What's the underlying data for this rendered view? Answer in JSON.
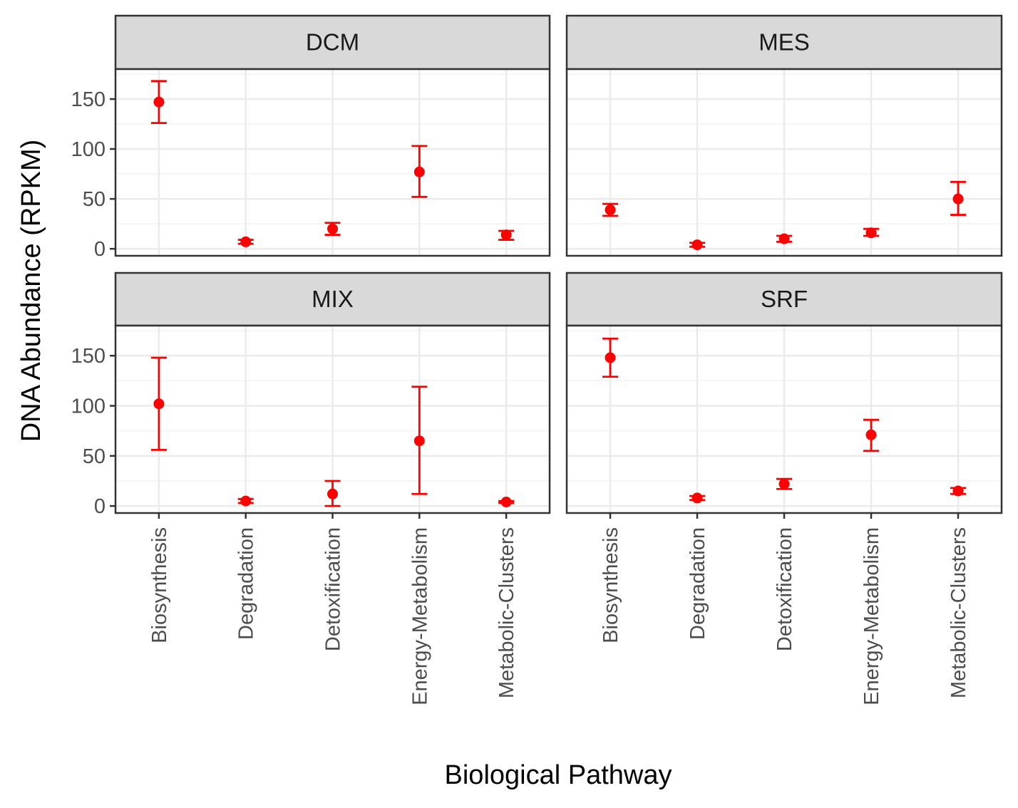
{
  "chart_data": {
    "type": "scatter",
    "title": "",
    "xlabel": "Biological Pathway",
    "ylabel": "DNA Abundance (RPKM)",
    "categories": [
      "Biosynthesis",
      "Degradation",
      "Detoxification",
      "Energy-Metabolism",
      "Metabolic-Clusters"
    ],
    "yticks": [
      0,
      50,
      100,
      150
    ],
    "ylim": [
      -7,
      180
    ],
    "grid": true,
    "point_color": "#ff0000",
    "facets": [
      {
        "name": "DCM",
        "points": [
          {
            "category": "Biosynthesis",
            "y": 147,
            "ymin": 126,
            "ymax": 168
          },
          {
            "category": "Degradation",
            "y": 7,
            "ymin": 5,
            "ymax": 9
          },
          {
            "category": "Detoxification",
            "y": 20,
            "ymin": 14,
            "ymax": 26
          },
          {
            "category": "Energy-Metabolism",
            "y": 77,
            "ymin": 52,
            "ymax": 103
          },
          {
            "category": "Metabolic-Clusters",
            "y": 14,
            "ymin": 9,
            "ymax": 18
          }
        ]
      },
      {
        "name": "MES",
        "points": [
          {
            "category": "Biosynthesis",
            "y": 39,
            "ymin": 33,
            "ymax": 45
          },
          {
            "category": "Degradation",
            "y": 4,
            "ymin": 2,
            "ymax": 6
          },
          {
            "category": "Detoxification",
            "y": 10,
            "ymin": 7,
            "ymax": 13
          },
          {
            "category": "Energy-Metabolism",
            "y": 16,
            "ymin": 13,
            "ymax": 20
          },
          {
            "category": "Metabolic-Clusters",
            "y": 50,
            "ymin": 34,
            "ymax": 67
          }
        ]
      },
      {
        "name": "MIX",
        "points": [
          {
            "category": "Biosynthesis",
            "y": 102,
            "ymin": 56,
            "ymax": 148
          },
          {
            "category": "Degradation",
            "y": 5,
            "ymin": 3,
            "ymax": 7
          },
          {
            "category": "Detoxification",
            "y": 12,
            "ymin": 0,
            "ymax": 25
          },
          {
            "category": "Energy-Metabolism",
            "y": 65,
            "ymin": 12,
            "ymax": 119
          },
          {
            "category": "Metabolic-Clusters",
            "y": 4,
            "ymin": 3,
            "ymax": 5
          }
        ]
      },
      {
        "name": "SRF",
        "points": [
          {
            "category": "Biosynthesis",
            "y": 148,
            "ymin": 129,
            "ymax": 167
          },
          {
            "category": "Degradation",
            "y": 8,
            "ymin": 6,
            "ymax": 10
          },
          {
            "category": "Detoxification",
            "y": 22,
            "ymin": 17,
            "ymax": 27
          },
          {
            "category": "Energy-Metabolism",
            "y": 71,
            "ymin": 55,
            "ymax": 86
          },
          {
            "category": "Metabolic-Clusters",
            "y": 15,
            "ymin": 12,
            "ymax": 18
          }
        ]
      }
    ]
  }
}
